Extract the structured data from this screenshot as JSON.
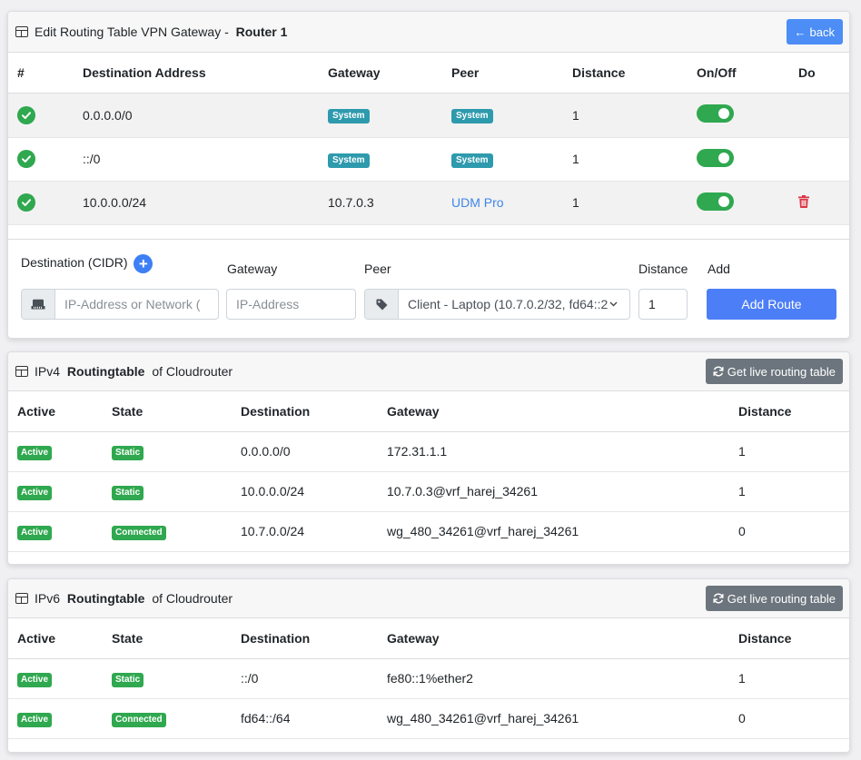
{
  "edit_card": {
    "title_prefix": "Edit Routing Table VPN Gateway - ",
    "title_router": "Router 1",
    "back_label": "back",
    "columns": [
      "#",
      "Destination Address",
      "Gateway",
      "Peer",
      "Distance",
      "On/Off",
      "Do"
    ],
    "rows": [
      {
        "destination": "0.0.0.0/0",
        "gateway": "System",
        "peer": "System",
        "distance": "1"
      },
      {
        "destination": "::/0",
        "gateway": "System",
        "peer": "System",
        "distance": "1"
      },
      {
        "destination": "10.0.0.0/24",
        "gateway": "10.7.0.3",
        "peer": "UDM Pro",
        "distance": "1"
      }
    ],
    "form": {
      "destination_label": "Destination (CIDR)",
      "destination_placeholder": "IP-Address or Network (",
      "gateway_label": "Gateway",
      "gateway_placeholder": "IP-Address",
      "peer_label": "Peer",
      "peer_selected": "Client - Laptop (10.7.0.2/32, fd64::2",
      "distance_label": "Distance",
      "distance_value": "1",
      "add_label": "Add",
      "add_button": "Add Route"
    }
  },
  "ipv4_card": {
    "title_prefix": "IPv4 ",
    "title_bold": "Routingtable",
    "title_suffix": " of Cloudrouter",
    "button": "Get live routing table",
    "columns": [
      "Active",
      "State",
      "Destination",
      "Gateway",
      "Distance"
    ],
    "rows": [
      {
        "active": "Active",
        "state": "Static",
        "destination": "0.0.0.0/0",
        "gateway": "172.31.1.1",
        "distance": "1"
      },
      {
        "active": "Active",
        "state": "Static",
        "destination": "10.0.0.0/24",
        "gateway": "10.7.0.3@vrf_harej_34261",
        "distance": "1"
      },
      {
        "active": "Active",
        "state": "Connected",
        "destination": "10.7.0.0/24",
        "gateway": "wg_480_34261@vrf_harej_34261",
        "distance": "0"
      }
    ]
  },
  "ipv6_card": {
    "title_prefix": "IPv6 ",
    "title_bold": "Routingtable",
    "title_suffix": " of Cloudrouter",
    "button": "Get live routing table",
    "columns": [
      "Active",
      "State",
      "Destination",
      "Gateway",
      "Distance"
    ],
    "rows": [
      {
        "active": "Active",
        "state": "Static",
        "destination": "::/0",
        "gateway": "fe80::1%ether2",
        "distance": "1"
      },
      {
        "active": "Active",
        "state": "Connected",
        "destination": "fd64::/64",
        "gateway": "wg_480_34261@vrf_harej_34261",
        "distance": "0"
      }
    ]
  },
  "colors": {
    "primary": "#4c8df6",
    "success": "#2fa84f",
    "info": "#2e9aad",
    "danger": "#dc3545",
    "secondary": "#6c757d"
  }
}
